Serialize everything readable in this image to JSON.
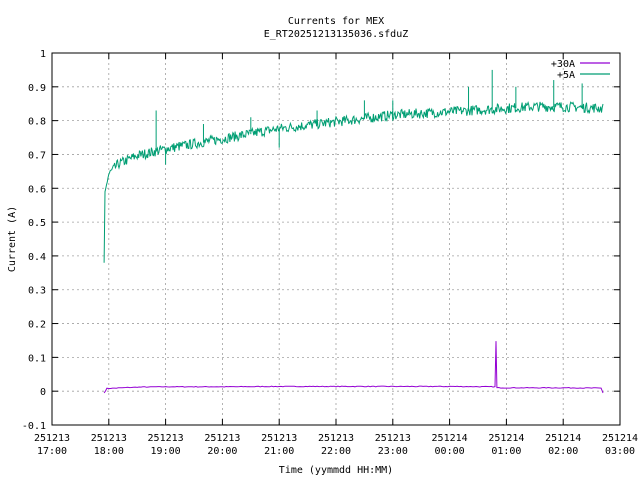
{
  "chart_data": {
    "type": "line",
    "title": "Currents for MEX",
    "subtitle": "E_RT20251213135036.sfduZ",
    "xlabel": "Time (yymmdd HH:MM)",
    "ylabel": "Current (A)",
    "ylim": [
      -0.1,
      1.0
    ],
    "xlim": [
      "251213 17:00",
      "251214 03:00"
    ],
    "grid": true,
    "legend_position": "top-right",
    "yticks": [
      "-0.1",
      "0",
      "0.1",
      "0.2",
      "0.3",
      "0.4",
      "0.5",
      "0.6",
      "0.7",
      "0.8",
      "0.9",
      "1"
    ],
    "xticks": [
      {
        "date": "251213",
        "time": "17:00"
      },
      {
        "date": "251213",
        "time": "18:00"
      },
      {
        "date": "251213",
        "time": "19:00"
      },
      {
        "date": "251213",
        "time": "20:00"
      },
      {
        "date": "251213",
        "time": "21:00"
      },
      {
        "date": "251213",
        "time": "22:00"
      },
      {
        "date": "251213",
        "time": "23:00"
      },
      {
        "date": "251214",
        "time": "00:00"
      },
      {
        "date": "251214",
        "time": "01:00"
      },
      {
        "date": "251214",
        "time": "02:00"
      },
      {
        "date": "251214",
        "time": "03:00"
      }
    ],
    "series": [
      {
        "name": "+30A",
        "color": "#9400d3",
        "points": [
          [
            "251213 17:55",
            -0.005
          ],
          [
            "251213 17:58",
            0.008
          ],
          [
            "251213 18:30",
            0.012
          ],
          [
            "251213 19:00",
            0.013
          ],
          [
            "251213 20:00",
            0.013
          ],
          [
            "251213 21:00",
            0.014
          ],
          [
            "251213 22:00",
            0.014
          ],
          [
            "251213 23:00",
            0.014
          ],
          [
            "251214 00:00",
            0.014
          ],
          [
            "251214 00:48",
            0.013
          ],
          [
            "251214 00:49",
            0.148
          ],
          [
            "251214 00:50",
            0.01
          ],
          [
            "251214 01:00",
            0.01
          ],
          [
            "251214 02:00",
            0.01
          ],
          [
            "251214 02:40",
            0.009
          ],
          [
            "251214 02:42",
            -0.005
          ]
        ]
      },
      {
        "name": "+5A",
        "color": "#009e73",
        "points": [
          [
            "251213 17:55",
            0.38
          ],
          [
            "251213 17:56",
            0.59
          ],
          [
            "251213 18:00",
            0.64
          ],
          [
            "251213 18:10",
            0.67
          ],
          [
            "251213 18:30",
            0.695
          ],
          [
            "251213 19:00",
            0.715
          ],
          [
            "251213 19:30",
            0.73
          ],
          [
            "251213 20:00",
            0.745
          ],
          [
            "251213 20:30",
            0.76
          ],
          [
            "251213 21:00",
            0.775
          ],
          [
            "251213 21:30",
            0.785
          ],
          [
            "251213 22:00",
            0.795
          ],
          [
            "251213 22:30",
            0.805
          ],
          [
            "251213 23:00",
            0.815
          ],
          [
            "251213 23:30",
            0.82
          ],
          [
            "251214 00:00",
            0.825
          ],
          [
            "251214 00:30",
            0.83
          ],
          [
            "251214 01:00",
            0.835
          ],
          [
            "251214 01:30",
            0.84
          ],
          [
            "251214 02:00",
            0.84
          ],
          [
            "251214 02:42",
            0.835
          ]
        ],
        "spikes": [
          [
            "251213 18:50",
            0.83
          ],
          [
            "251213 19:00",
            0.67
          ],
          [
            "251213 19:40",
            0.79
          ],
          [
            "251213 20:30",
            0.81
          ],
          [
            "251213 21:00",
            0.72
          ],
          [
            "251213 21:40",
            0.83
          ],
          [
            "251213 22:30",
            0.86
          ],
          [
            "251213 23:00",
            0.86
          ],
          [
            "251214 00:20",
            0.9
          ],
          [
            "251214 00:45",
            0.95
          ],
          [
            "251214 01:10",
            0.9
          ],
          [
            "251214 01:50",
            0.92
          ],
          [
            "251214 02:20",
            0.91
          ]
        ]
      }
    ]
  }
}
